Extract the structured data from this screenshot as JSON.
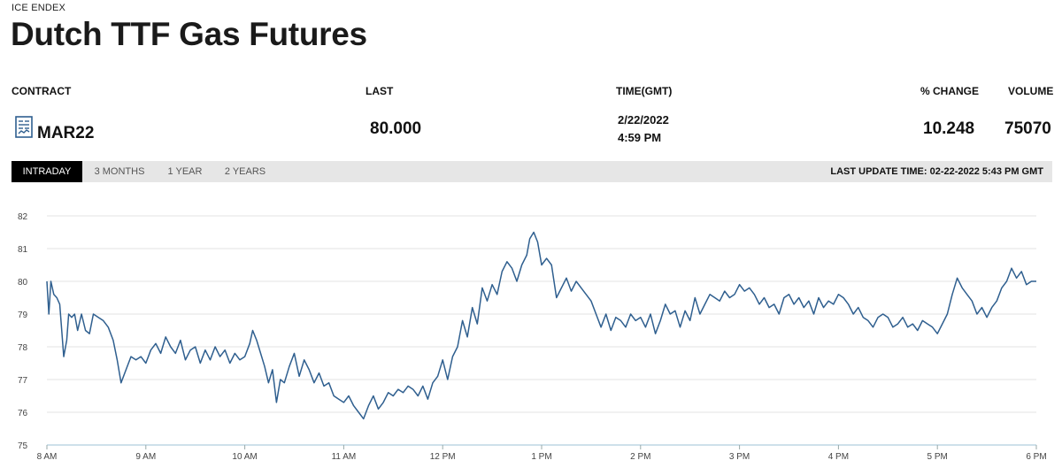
{
  "header": {
    "exchange": "ICE ENDEX",
    "title": "Dutch TTF Gas Futures"
  },
  "table": {
    "columns": [
      "CONTRACT",
      "LAST",
      "TIME(GMT)",
      "% CHANGE",
      "VOLUME"
    ],
    "row": {
      "contract": "MAR22",
      "last": "80.000",
      "date": "2/22/2022",
      "time": "4:59 PM",
      "pct_change": "10.248",
      "volume": "75070"
    },
    "contract_icon": "document-chart-icon"
  },
  "tabs": [
    {
      "label": "INTRADAY",
      "active": true
    },
    {
      "label": "3 MONTHS",
      "active": false
    },
    {
      "label": "1 YEAR",
      "active": false
    },
    {
      "label": "2 YEARS",
      "active": false
    }
  ],
  "last_update": "LAST UPDATE TIME: 02-22-2022 5:43 PM GMT",
  "colors": {
    "line": "#2f5f8f",
    "active_tab": "#000000",
    "tab_bar": "#e6e6e6",
    "grid": "#e3e3e3"
  },
  "chart_data": {
    "type": "line",
    "title": "",
    "xlabel": "",
    "ylabel": "",
    "xlim": [
      8,
      18
    ],
    "ylim": [
      75,
      82
    ],
    "grid": true,
    "x_ticks": [
      {
        "x": 8,
        "label": "8 AM"
      },
      {
        "x": 9,
        "label": "9 AM"
      },
      {
        "x": 10,
        "label": "10 AM"
      },
      {
        "x": 11,
        "label": "11 AM"
      },
      {
        "x": 12,
        "label": "12 PM"
      },
      {
        "x": 13,
        "label": "1 PM"
      },
      {
        "x": 14,
        "label": "2 PM"
      },
      {
        "x": 15,
        "label": "3 PM"
      },
      {
        "x": 16,
        "label": "4 PM"
      },
      {
        "x": 17,
        "label": "5 PM"
      },
      {
        "x": 18,
        "label": "6 PM"
      }
    ],
    "y_ticks": [
      75,
      76,
      77,
      78,
      79,
      80,
      81,
      82
    ],
    "series": [
      {
        "points": [
          [
            8.0,
            80.0
          ],
          [
            8.02,
            79.0
          ],
          [
            8.04,
            80.0
          ],
          [
            8.07,
            79.6
          ],
          [
            8.1,
            79.5
          ],
          [
            8.13,
            79.3
          ],
          [
            8.17,
            77.7
          ],
          [
            8.2,
            78.2
          ],
          [
            8.22,
            79.0
          ],
          [
            8.25,
            78.9
          ],
          [
            8.28,
            79.0
          ],
          [
            8.31,
            78.5
          ],
          [
            8.35,
            79.0
          ],
          [
            8.39,
            78.5
          ],
          [
            8.43,
            78.4
          ],
          [
            8.47,
            79.0
          ],
          [
            8.52,
            78.9
          ],
          [
            8.57,
            78.8
          ],
          [
            8.62,
            78.6
          ],
          [
            8.67,
            78.2
          ],
          [
            8.71,
            77.6
          ],
          [
            8.75,
            76.9
          ],
          [
            8.8,
            77.3
          ],
          [
            8.85,
            77.7
          ],
          [
            8.9,
            77.6
          ],
          [
            8.95,
            77.7
          ],
          [
            9.0,
            77.5
          ],
          [
            9.05,
            77.9
          ],
          [
            9.1,
            78.1
          ],
          [
            9.15,
            77.8
          ],
          [
            9.2,
            78.3
          ],
          [
            9.25,
            78.0
          ],
          [
            9.3,
            77.8
          ],
          [
            9.35,
            78.2
          ],
          [
            9.4,
            77.6
          ],
          [
            9.45,
            77.9
          ],
          [
            9.5,
            78.0
          ],
          [
            9.55,
            77.5
          ],
          [
            9.6,
            77.9
          ],
          [
            9.65,
            77.6
          ],
          [
            9.7,
            78.0
          ],
          [
            9.75,
            77.7
          ],
          [
            9.8,
            77.9
          ],
          [
            9.85,
            77.5
          ],
          [
            9.9,
            77.8
          ],
          [
            9.95,
            77.6
          ],
          [
            10.0,
            77.7
          ],
          [
            10.05,
            78.1
          ],
          [
            10.08,
            78.5
          ],
          [
            10.12,
            78.2
          ],
          [
            10.16,
            77.8
          ],
          [
            10.2,
            77.4
          ],
          [
            10.24,
            76.9
          ],
          [
            10.28,
            77.3
          ],
          [
            10.32,
            76.3
          ],
          [
            10.36,
            77.0
          ],
          [
            10.4,
            76.9
          ],
          [
            10.45,
            77.4
          ],
          [
            10.5,
            77.8
          ],
          [
            10.55,
            77.1
          ],
          [
            10.6,
            77.6
          ],
          [
            10.65,
            77.3
          ],
          [
            10.7,
            76.9
          ],
          [
            10.75,
            77.2
          ],
          [
            10.8,
            76.8
          ],
          [
            10.85,
            76.9
          ],
          [
            10.9,
            76.5
          ],
          [
            10.95,
            76.4
          ],
          [
            11.0,
            76.3
          ],
          [
            11.05,
            76.5
          ],
          [
            11.1,
            76.2
          ],
          [
            11.15,
            76.0
          ],
          [
            11.2,
            75.8
          ],
          [
            11.25,
            76.2
          ],
          [
            11.3,
            76.5
          ],
          [
            11.35,
            76.1
          ],
          [
            11.4,
            76.3
          ],
          [
            11.45,
            76.6
          ],
          [
            11.5,
            76.5
          ],
          [
            11.55,
            76.7
          ],
          [
            11.6,
            76.6
          ],
          [
            11.65,
            76.8
          ],
          [
            11.7,
            76.7
          ],
          [
            11.75,
            76.5
          ],
          [
            11.8,
            76.8
          ],
          [
            11.85,
            76.4
          ],
          [
            11.9,
            76.9
          ],
          [
            11.95,
            77.1
          ],
          [
            12.0,
            77.6
          ],
          [
            12.05,
            77.0
          ],
          [
            12.1,
            77.7
          ],
          [
            12.15,
            78.0
          ],
          [
            12.2,
            78.8
          ],
          [
            12.25,
            78.3
          ],
          [
            12.3,
            79.2
          ],
          [
            12.35,
            78.7
          ],
          [
            12.4,
            79.8
          ],
          [
            12.45,
            79.4
          ],
          [
            12.5,
            79.9
          ],
          [
            12.55,
            79.6
          ],
          [
            12.6,
            80.3
          ],
          [
            12.65,
            80.6
          ],
          [
            12.7,
            80.4
          ],
          [
            12.75,
            80.0
          ],
          [
            12.8,
            80.5
          ],
          [
            12.85,
            80.8
          ],
          [
            12.88,
            81.3
          ],
          [
            12.92,
            81.5
          ],
          [
            12.96,
            81.2
          ],
          [
            13.0,
            80.5
          ],
          [
            13.05,
            80.7
          ],
          [
            13.1,
            80.5
          ],
          [
            13.15,
            79.5
          ],
          [
            13.2,
            79.8
          ],
          [
            13.25,
            80.1
          ],
          [
            13.3,
            79.7
          ],
          [
            13.35,
            80.0
          ],
          [
            13.4,
            79.8
          ],
          [
            13.45,
            79.6
          ],
          [
            13.5,
            79.4
          ],
          [
            13.55,
            79.0
          ],
          [
            13.6,
            78.6
          ],
          [
            13.65,
            79.0
          ],
          [
            13.7,
            78.5
          ],
          [
            13.75,
            78.9
          ],
          [
            13.8,
            78.8
          ],
          [
            13.85,
            78.6
          ],
          [
            13.9,
            79.0
          ],
          [
            13.95,
            78.8
          ],
          [
            14.0,
            78.9
          ],
          [
            14.05,
            78.6
          ],
          [
            14.1,
            79.0
          ],
          [
            14.15,
            78.4
          ],
          [
            14.2,
            78.8
          ],
          [
            14.25,
            79.3
          ],
          [
            14.3,
            79.0
          ],
          [
            14.35,
            79.1
          ],
          [
            14.4,
            78.6
          ],
          [
            14.45,
            79.1
          ],
          [
            14.5,
            78.8
          ],
          [
            14.55,
            79.5
          ],
          [
            14.6,
            79.0
          ],
          [
            14.65,
            79.3
          ],
          [
            14.7,
            79.6
          ],
          [
            14.75,
            79.5
          ],
          [
            14.8,
            79.4
          ],
          [
            14.85,
            79.7
          ],
          [
            14.9,
            79.5
          ],
          [
            14.95,
            79.6
          ],
          [
            15.0,
            79.9
          ],
          [
            15.05,
            79.7
          ],
          [
            15.1,
            79.8
          ],
          [
            15.15,
            79.6
          ],
          [
            15.2,
            79.3
          ],
          [
            15.25,
            79.5
          ],
          [
            15.3,
            79.2
          ],
          [
            15.35,
            79.3
          ],
          [
            15.4,
            79.0
          ],
          [
            15.45,
            79.5
          ],
          [
            15.5,
            79.6
          ],
          [
            15.55,
            79.3
          ],
          [
            15.6,
            79.5
          ],
          [
            15.65,
            79.2
          ],
          [
            15.7,
            79.4
          ],
          [
            15.75,
            79.0
          ],
          [
            15.8,
            79.5
          ],
          [
            15.85,
            79.2
          ],
          [
            15.9,
            79.4
          ],
          [
            15.95,
            79.3
          ],
          [
            16.0,
            79.6
          ],
          [
            16.05,
            79.5
          ],
          [
            16.1,
            79.3
          ],
          [
            16.15,
            79.0
          ],
          [
            16.2,
            79.2
          ],
          [
            16.25,
            78.9
          ],
          [
            16.3,
            78.8
          ],
          [
            16.35,
            78.6
          ],
          [
            16.4,
            78.9
          ],
          [
            16.45,
            79.0
          ],
          [
            16.5,
            78.9
          ],
          [
            16.55,
            78.6
          ],
          [
            16.6,
            78.7
          ],
          [
            16.65,
            78.9
          ],
          [
            16.7,
            78.6
          ],
          [
            16.75,
            78.7
          ],
          [
            16.8,
            78.5
          ],
          [
            16.85,
            78.8
          ],
          [
            16.9,
            78.7
          ],
          [
            16.95,
            78.6
          ],
          [
            17.0,
            78.4
          ],
          [
            17.05,
            78.7
          ],
          [
            17.1,
            79.0
          ],
          [
            17.15,
            79.6
          ],
          [
            17.2,
            80.1
          ],
          [
            17.25,
            79.8
          ],
          [
            17.3,
            79.6
          ],
          [
            17.35,
            79.4
          ],
          [
            17.4,
            79.0
          ],
          [
            17.45,
            79.2
          ],
          [
            17.5,
            78.9
          ],
          [
            17.55,
            79.2
          ],
          [
            17.6,
            79.4
          ],
          [
            17.65,
            79.8
          ],
          [
            17.7,
            80.0
          ],
          [
            17.75,
            80.4
          ],
          [
            17.8,
            80.1
          ],
          [
            17.85,
            80.3
          ],
          [
            17.9,
            79.9
          ],
          [
            17.95,
            80.0
          ],
          [
            18.0,
            80.0
          ]
        ]
      }
    ]
  }
}
